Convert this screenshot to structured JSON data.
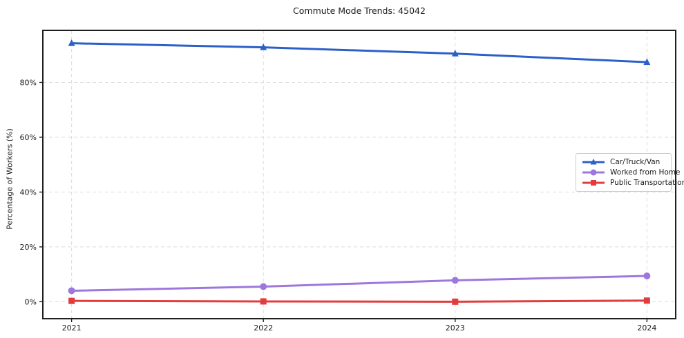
{
  "chart_data": {
    "type": "line",
    "title": "Commute Mode Trends: 45042",
    "xlabel": "",
    "ylabel": "Percentage of Workers (%)",
    "x": [
      2021,
      2022,
      2023,
      2024
    ],
    "x_tick_labels": [
      "2021",
      "2022",
      "2023",
      "2024"
    ],
    "y_ticks": [
      0,
      20,
      40,
      60,
      80
    ],
    "y_tick_labels": [
      "0%",
      "20%",
      "40%",
      "60%",
      "80%"
    ],
    "xlim": [
      2020.85,
      2024.15
    ],
    "ylim": [
      -6.2,
      99
    ],
    "grid": true,
    "grid_style": "dashed",
    "legend_position": "center-right",
    "series": [
      {
        "name": "Car/Truck/Van",
        "color": "#2b60c8",
        "marker": "triangle",
        "values": [
          94.3,
          92.8,
          90.5,
          87.4
        ]
      },
      {
        "name": "Worked from Home",
        "color": "#9d77dc",
        "marker": "circle",
        "values": [
          4.0,
          5.5,
          7.8,
          9.4
        ]
      },
      {
        "name": "Public Transportation",
        "color": "#e23c3c",
        "marker": "square",
        "values": [
          0.3,
          0.1,
          0.0,
          0.4
        ]
      }
    ],
    "colors": {
      "grid": "#dcdcdc",
      "spine": "#1f1f1f",
      "tick_text": "#1a1a1a",
      "background": "#ffffff"
    }
  }
}
